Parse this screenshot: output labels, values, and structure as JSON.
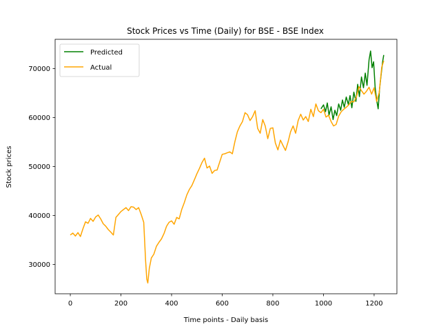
{
  "chart_data": {
    "type": "line",
    "title": "Stock Prices vs Time (Daily) for BSE - BSE Index",
    "xlabel": "Time points - Daily basis",
    "ylabel": "Stock prices",
    "xlim": [
      -60,
      1290
    ],
    "ylim": [
      24000,
      76000
    ],
    "x_ticks": [
      0,
      200,
      400,
      600,
      800,
      1000,
      1200
    ],
    "y_ticks": [
      30000,
      40000,
      50000,
      60000,
      70000
    ],
    "x_tick_labels": [
      "0",
      "200",
      "400",
      "600",
      "800",
      "1000",
      "1200"
    ],
    "y_tick_labels": [
      "30000",
      "40000",
      "50000",
      "60000",
      "70000"
    ],
    "grid": false,
    "legend_position": "upper-left",
    "series": [
      {
        "name": "Predicted",
        "color": "#008000",
        "points": [
          [
            990,
            61800
          ],
          [
            1000,
            62600
          ],
          [
            1008,
            61200
          ],
          [
            1015,
            63000
          ],
          [
            1022,
            60500
          ],
          [
            1030,
            62200
          ],
          [
            1038,
            59600
          ],
          [
            1045,
            61500
          ],
          [
            1052,
            60400
          ],
          [
            1060,
            62800
          ],
          [
            1068,
            61500
          ],
          [
            1075,
            63600
          ],
          [
            1082,
            62100
          ],
          [
            1090,
            64200
          ],
          [
            1098,
            62700
          ],
          [
            1105,
            64500
          ],
          [
            1112,
            62000
          ],
          [
            1120,
            65200
          ],
          [
            1128,
            63300
          ],
          [
            1135,
            66800
          ],
          [
            1142,
            64300
          ],
          [
            1150,
            68300
          ],
          [
            1158,
            66100
          ],
          [
            1165,
            69100
          ],
          [
            1172,
            66600
          ],
          [
            1180,
            71800
          ],
          [
            1186,
            73600
          ],
          [
            1192,
            70200
          ],
          [
            1198,
            71400
          ],
          [
            1204,
            66200
          ],
          [
            1210,
            63600
          ],
          [
            1216,
            61800
          ],
          [
            1222,
            66100
          ],
          [
            1228,
            68900
          ],
          [
            1234,
            71500
          ],
          [
            1238,
            72800
          ]
        ]
      },
      {
        "name": "Actual",
        "color": "#ffa500",
        "points": [
          [
            0,
            36000
          ],
          [
            10,
            36400
          ],
          [
            20,
            35800
          ],
          [
            30,
            36500
          ],
          [
            40,
            35700
          ],
          [
            50,
            37300
          ],
          [
            60,
            38700
          ],
          [
            70,
            38400
          ],
          [
            80,
            39400
          ],
          [
            90,
            38800
          ],
          [
            100,
            39700
          ],
          [
            110,
            40100
          ],
          [
            120,
            39300
          ],
          [
            130,
            38300
          ],
          [
            140,
            37800
          ],
          [
            150,
            37100
          ],
          [
            160,
            36600
          ],
          [
            170,
            36000
          ],
          [
            180,
            39600
          ],
          [
            190,
            40200
          ],
          [
            200,
            40800
          ],
          [
            210,
            41200
          ],
          [
            220,
            41600
          ],
          [
            230,
            41000
          ],
          [
            240,
            41800
          ],
          [
            250,
            41700
          ],
          [
            260,
            41200
          ],
          [
            270,
            41600
          ],
          [
            280,
            40200
          ],
          [
            290,
            38600
          ],
          [
            297,
            31000
          ],
          [
            302,
            27000
          ],
          [
            306,
            26200
          ],
          [
            312,
            29200
          ],
          [
            320,
            31300
          ],
          [
            330,
            32100
          ],
          [
            340,
            33700
          ],
          [
            350,
            34500
          ],
          [
            360,
            35200
          ],
          [
            370,
            36300
          ],
          [
            380,
            37800
          ],
          [
            390,
            38600
          ],
          [
            400,
            38900
          ],
          [
            410,
            38200
          ],
          [
            420,
            39600
          ],
          [
            430,
            39300
          ],
          [
            440,
            41200
          ],
          [
            450,
            42600
          ],
          [
            460,
            44200
          ],
          [
            470,
            45300
          ],
          [
            480,
            46100
          ],
          [
            490,
            47300
          ],
          [
            500,
            48500
          ],
          [
            510,
            49600
          ],
          [
            520,
            50800
          ],
          [
            530,
            51700
          ],
          [
            540,
            49700
          ],
          [
            550,
            50100
          ],
          [
            560,
            48600
          ],
          [
            570,
            49200
          ],
          [
            580,
            49300
          ],
          [
            590,
            50900
          ],
          [
            600,
            52500
          ],
          [
            610,
            52600
          ],
          [
            620,
            52800
          ],
          [
            630,
            53000
          ],
          [
            640,
            52600
          ],
          [
            650,
            55100
          ],
          [
            660,
            57100
          ],
          [
            670,
            58300
          ],
          [
            680,
            59200
          ],
          [
            690,
            61000
          ],
          [
            700,
            60600
          ],
          [
            710,
            59400
          ],
          [
            720,
            60200
          ],
          [
            730,
            61400
          ],
          [
            740,
            57800
          ],
          [
            750,
            56800
          ],
          [
            760,
            59600
          ],
          [
            770,
            58300
          ],
          [
            780,
            55700
          ],
          [
            790,
            57800
          ],
          [
            800,
            57900
          ],
          [
            810,
            54800
          ],
          [
            820,
            53400
          ],
          [
            830,
            55400
          ],
          [
            840,
            54300
          ],
          [
            850,
            53300
          ],
          [
            860,
            55000
          ],
          [
            870,
            57100
          ],
          [
            880,
            58300
          ],
          [
            890,
            56800
          ],
          [
            900,
            59400
          ],
          [
            910,
            60700
          ],
          [
            920,
            59500
          ],
          [
            930,
            60200
          ],
          [
            940,
            59200
          ],
          [
            950,
            61700
          ],
          [
            960,
            60200
          ],
          [
            970,
            62800
          ],
          [
            980,
            61400
          ],
          [
            990,
            61000
          ],
          [
            1000,
            61700
          ],
          [
            1010,
            60100
          ],
          [
            1020,
            60500
          ],
          [
            1030,
            59200
          ],
          [
            1040,
            58300
          ],
          [
            1050,
            58600
          ],
          [
            1060,
            60300
          ],
          [
            1070,
            61200
          ],
          [
            1080,
            61700
          ],
          [
            1090,
            62100
          ],
          [
            1100,
            62600
          ],
          [
            1110,
            63300
          ],
          [
            1120,
            63200
          ],
          [
            1130,
            64200
          ],
          [
            1140,
            66300
          ],
          [
            1150,
            65500
          ],
          [
            1160,
            64800
          ],
          [
            1170,
            65400
          ],
          [
            1180,
            66200
          ],
          [
            1190,
            64800
          ],
          [
            1200,
            66100
          ],
          [
            1210,
            63300
          ],
          [
            1220,
            65100
          ],
          [
            1230,
            70300
          ],
          [
            1238,
            71600
          ]
        ]
      }
    ]
  }
}
